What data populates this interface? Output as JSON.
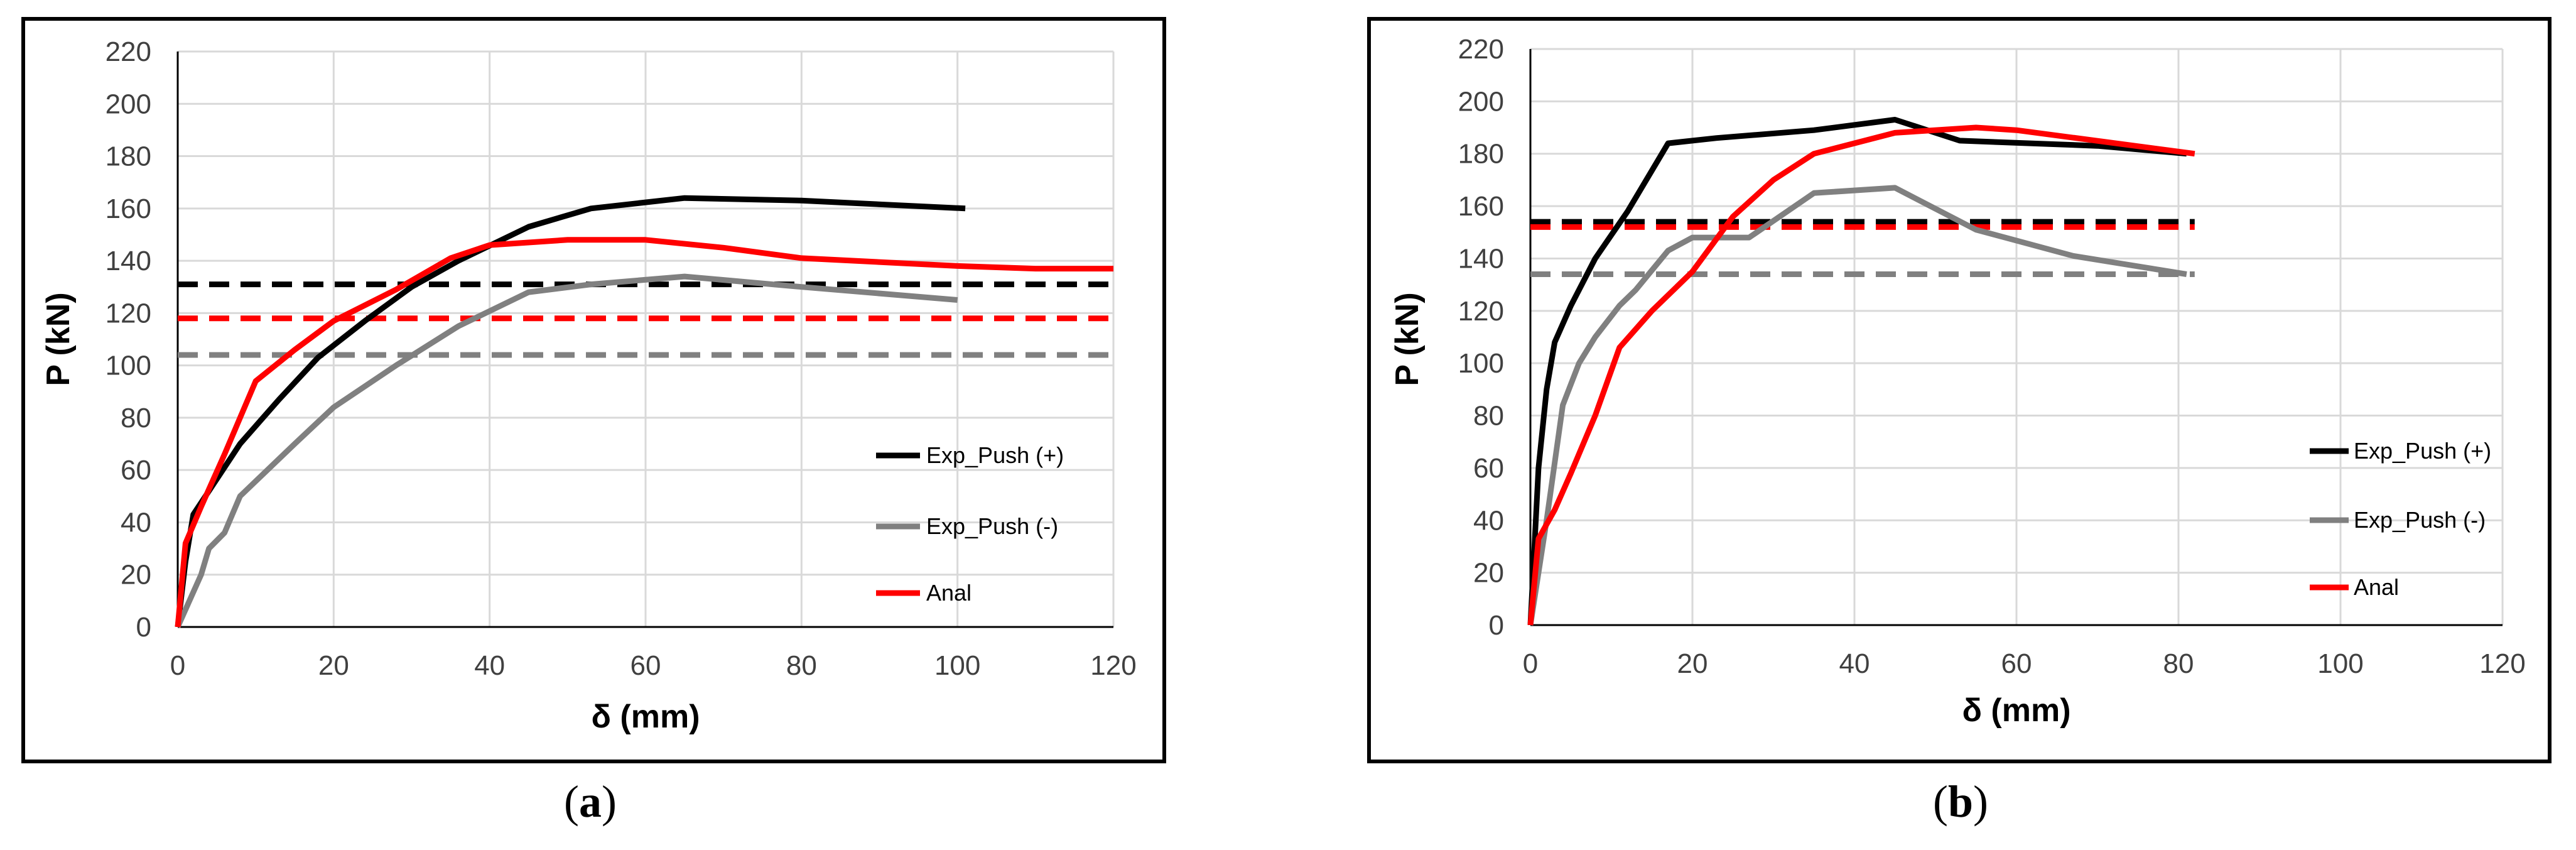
{
  "chart_data": [
    {
      "type": "line",
      "panel_label": "a",
      "xlabel": "δ (mm)",
      "ylabel": "P (kN)",
      "xlim": [
        0,
        120
      ],
      "ylim": [
        0,
        220
      ],
      "x_ticks": [
        0,
        20,
        40,
        60,
        80,
        100,
        120
      ],
      "y_ticks": [
        0,
        20,
        40,
        60,
        80,
        100,
        120,
        140,
        160,
        180,
        200,
        220
      ],
      "grid": true,
      "legend_position": "lower-right",
      "series": [
        {
          "name": "Exp_Push (+)",
          "color": "#000000",
          "style": "solid",
          "points": [
            [
              0,
              0
            ],
            [
              1,
              25
            ],
            [
              2,
              43
            ],
            [
              4,
              52
            ],
            [
              8,
              70
            ],
            [
              13,
              87
            ],
            [
              18,
              103
            ],
            [
              24,
              117
            ],
            [
              30,
              130
            ],
            [
              36,
              140
            ],
            [
              45,
              153
            ],
            [
              53,
              160
            ],
            [
              65,
              164
            ],
            [
              80,
              163
            ],
            [
              101,
              160
            ]
          ]
        },
        {
          "name": "Exp_Push (-)",
          "color": "#808080",
          "style": "solid",
          "points": [
            [
              0,
              0
            ],
            [
              3,
              20
            ],
            [
              4,
              30
            ],
            [
              6,
              36
            ],
            [
              8,
              50
            ],
            [
              15,
              70
            ],
            [
              20,
              84
            ],
            [
              28,
              100
            ],
            [
              36,
              115
            ],
            [
              45,
              128
            ],
            [
              53,
              131
            ],
            [
              65,
              134
            ],
            [
              80,
              130
            ],
            [
              100,
              125
            ]
          ]
        },
        {
          "name": "Anal",
          "color": "#ff0000",
          "style": "solid",
          "points": [
            [
              0,
              0
            ],
            [
              1,
              32
            ],
            [
              3,
              46
            ],
            [
              6,
              66
            ],
            [
              10,
              94
            ],
            [
              15,
              106
            ],
            [
              20,
              117
            ],
            [
              28,
              129
            ],
            [
              35,
              141
            ],
            [
              40,
              146
            ],
            [
              50,
              148
            ],
            [
              60,
              148
            ],
            [
              70,
              145
            ],
            [
              80,
              141
            ],
            [
              100,
              138
            ],
            [
              110,
              137
            ],
            [
              120,
              137
            ]
          ]
        },
        {
          "name": "Exp_Push (+) ref",
          "color": "#000000",
          "style": "dashed",
          "points": [
            [
              0,
              131
            ],
            [
              120,
              131
            ]
          ]
        },
        {
          "name": "Anal ref",
          "color": "#ff0000",
          "style": "dashed",
          "points": [
            [
              0,
              118
            ],
            [
              120,
              118
            ]
          ]
        },
        {
          "name": "Exp_Push (-) ref",
          "color": "#808080",
          "style": "dashed",
          "points": [
            [
              0,
              104
            ],
            [
              120,
              104
            ]
          ]
        }
      ],
      "legend": [
        "Exp_Push (+)",
        "Exp_Push (-)",
        "Anal"
      ]
    },
    {
      "type": "line",
      "panel_label": "b",
      "xlabel": "δ (mm)",
      "ylabel": "P (kN)",
      "xlim": [
        0,
        120
      ],
      "ylim": [
        0,
        220
      ],
      "x_ticks": [
        0,
        20,
        40,
        60,
        80,
        100,
        120
      ],
      "y_ticks": [
        0,
        20,
        40,
        60,
        80,
        100,
        120,
        140,
        160,
        180,
        200,
        220
      ],
      "grid": true,
      "legend_position": "lower-right",
      "series": [
        {
          "name": "Exp_Push (+)",
          "color": "#000000",
          "style": "solid",
          "points": [
            [
              0,
              0
            ],
            [
              1,
              60
            ],
            [
              2,
              90
            ],
            [
              3,
              108
            ],
            [
              5,
              122
            ],
            [
              8,
              140
            ],
            [
              12,
              158
            ],
            [
              17,
              184
            ],
            [
              23,
              186
            ],
            [
              35,
              189
            ],
            [
              45,
              193
            ],
            [
              48,
              190
            ],
            [
              53,
              185
            ],
            [
              70,
              183
            ],
            [
              81,
              180
            ]
          ]
        },
        {
          "name": "Exp_Push (-)",
          "color": "#808080",
          "style": "solid",
          "points": [
            [
              0,
              0
            ],
            [
              2,
              40
            ],
            [
              3,
              62
            ],
            [
              4,
              84
            ],
            [
              6,
              100
            ],
            [
              8,
              110
            ],
            [
              11,
              122
            ],
            [
              13,
              128
            ],
            [
              17,
              143
            ],
            [
              20,
              148
            ],
            [
              27,
              148
            ],
            [
              35,
              165
            ],
            [
              45,
              167
            ],
            [
              55,
              151
            ],
            [
              67,
              141
            ],
            [
              81,
              134
            ]
          ]
        },
        {
          "name": "Anal",
          "color": "#ff0000",
          "style": "solid",
          "points": [
            [
              0,
              0
            ],
            [
              1,
              33
            ],
            [
              3,
              44
            ],
            [
              5,
              58
            ],
            [
              8,
              80
            ],
            [
              11,
              106
            ],
            [
              15,
              120
            ],
            [
              20,
              135
            ],
            [
              25,
              156
            ],
            [
              30,
              170
            ],
            [
              35,
              180
            ],
            [
              45,
              188
            ],
            [
              55,
              190
            ],
            [
              60,
              189
            ],
            [
              82,
              180
            ]
          ]
        },
        {
          "name": "Exp_Push (+) ref",
          "color": "#000000",
          "style": "dashed",
          "points": [
            [
              0,
              154
            ],
            [
              82,
              154
            ]
          ]
        },
        {
          "name": "Anal ref",
          "color": "#ff0000",
          "style": "dashed",
          "points": [
            [
              0,
              152
            ],
            [
              82,
              152
            ]
          ]
        },
        {
          "name": "Exp_Push (-) ref",
          "color": "#808080",
          "style": "dashed",
          "points": [
            [
              0,
              134
            ],
            [
              82,
              134
            ]
          ]
        }
      ],
      "legend": [
        "Exp_Push (+)",
        "Exp_Push (-)",
        "Anal"
      ]
    }
  ],
  "captions": [
    {
      "open": "(",
      "label": "a",
      "close": ")"
    },
    {
      "open": "(",
      "label": "b",
      "close": ")"
    }
  ]
}
